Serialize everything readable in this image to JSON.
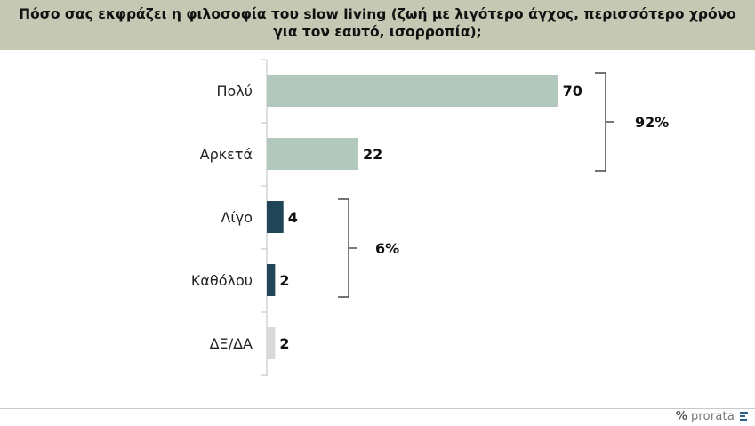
{
  "header": {
    "title": "Πόσο σας εκφράζει η φιλοσοφία του slow living (ζωή με λιγότερο άγχος, περισσότερο χρόνο για τον εαυτό, ισορροπία);"
  },
  "chart_data": {
    "type": "bar",
    "orientation": "horizontal",
    "categories": [
      "Πολύ",
      "Αρκετά",
      "Λίγο",
      "Καθόλου",
      "ΔΞ/ΔΑ"
    ],
    "values": [
      70,
      22,
      4,
      2,
      2
    ],
    "colors": [
      "#b3c8bc",
      "#b3c8bc",
      "#1f4556",
      "#1f4556",
      "#d9d9d9"
    ],
    "xlim": [
      0,
      100
    ],
    "grid": false,
    "groups": [
      {
        "label": "92%",
        "members": [
          "Πολύ",
          "Αρκετά"
        ]
      },
      {
        "label": "6%",
        "members": [
          "Λίγο",
          "Καθόλου"
        ]
      }
    ]
  },
  "footer": {
    "logo_mark": "%",
    "logo_text": "prorata",
    "brand_color": "#2a5d8a"
  }
}
